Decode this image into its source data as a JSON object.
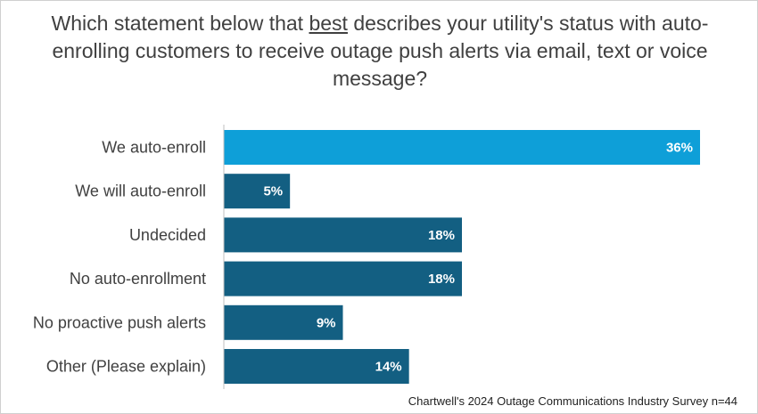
{
  "chart_data": {
    "type": "bar",
    "orientation": "horizontal",
    "title": {
      "part1": "Which statement below that ",
      "emphasis": "best",
      "part2": " describes your utility's status with auto-enrolling customers to receive outage push alerts via email, text or voice message?"
    },
    "categories": [
      "We auto-enroll",
      "We will auto-enroll",
      "Undecided",
      "No auto-enrollment",
      "No proactive push alerts",
      "Other (Please explain)"
    ],
    "values": [
      36,
      5,
      18,
      18,
      9,
      14
    ],
    "value_labels": [
      "36%",
      "5%",
      "18%",
      "18%",
      "9%",
      "14%"
    ],
    "unit": "%",
    "xlim": [
      0,
      36
    ],
    "highlight_index": 0,
    "colors": {
      "highlight": "#0e9fd8",
      "bar": "#135f82",
      "axis": "#bfbfbf"
    },
    "grid": false,
    "legend": "none",
    "source": "Chartwell's 2024 Outage Communications Industry Survey n=44"
  }
}
